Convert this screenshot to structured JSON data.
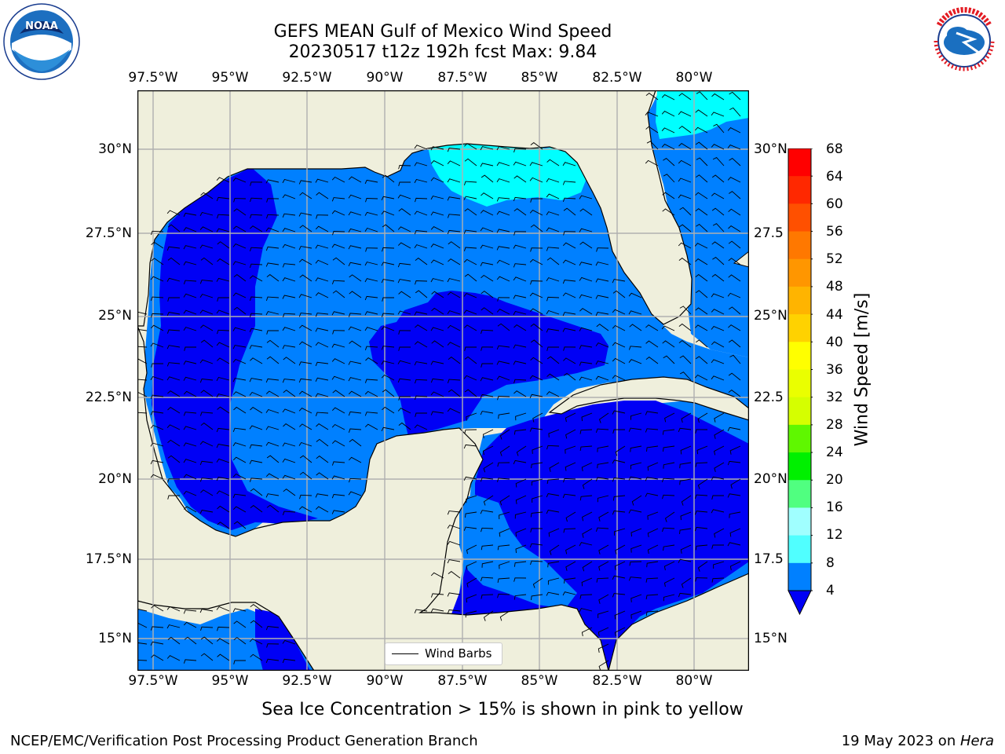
{
  "header": {
    "title_line1": "GEFS MEAN Gulf of Mexico Wind Speed",
    "title_line2": "20230517 t12z 192h fcst   Max: 9.84"
  },
  "logos": {
    "left": "noaa-logo",
    "right": "national-weather-service-logo",
    "noaa_text": "NOAA",
    "nws_text": "NATIONAL WEATHER SERVICE"
  },
  "map": {
    "lon_labels": [
      "97.5°W",
      "95°W",
      "92.5°W",
      "90°W",
      "87.5°W",
      "85°W",
      "82.5°W",
      "80°W"
    ],
    "lat_labels_left": [
      "30°N",
      "27.5°N",
      "25°N",
      "22.5°N",
      "20°N",
      "17.5°N",
      "15°N"
    ],
    "lat_labels_right": [
      "30°N",
      "27.5",
      "25°N",
      "22.5",
      "20°N",
      "17.5",
      "15°N"
    ],
    "extent": {
      "lon_min": -98.0,
      "lon_max": -78.2,
      "lat_min": 14.1,
      "lat_max": 31.7
    },
    "colors": {
      "land": "#efefdc",
      "ocean_4_8": "#0080ff",
      "ocean_0_4": "#0000f5",
      "ocean_8_12": "#00ffff",
      "grid": "#b0b0b0"
    },
    "legend_label": "Wind Barbs"
  },
  "colorbar": {
    "label": "Wind Speed [m/s]",
    "ticks": [
      "68",
      "64",
      "60",
      "56",
      "52",
      "48",
      "44",
      "40",
      "36",
      "32",
      "28",
      "24",
      "20",
      "16",
      "12",
      "8",
      "4"
    ],
    "colors": [
      "#ff0000",
      "#ff2800",
      "#ff5000",
      "#ff7800",
      "#ff9600",
      "#ffb400",
      "#ffd200",
      "#ffff00",
      "#eaff00",
      "#d5ff00",
      "#b8ff00",
      "#5ff700",
      "#00f000",
      "#50ff80",
      "#a0ffff",
      "#50ffff",
      "#00ffff",
      "#0080ff",
      "#0000f5"
    ]
  },
  "note": "Sea Ice Concentration > 15% is shown in pink to yellow",
  "footer": {
    "left": "NCEP/EMC/Verification Post Processing Product Generation Branch",
    "right_prefix": "19 May 2023 on ",
    "right_machine": "Hera"
  }
}
